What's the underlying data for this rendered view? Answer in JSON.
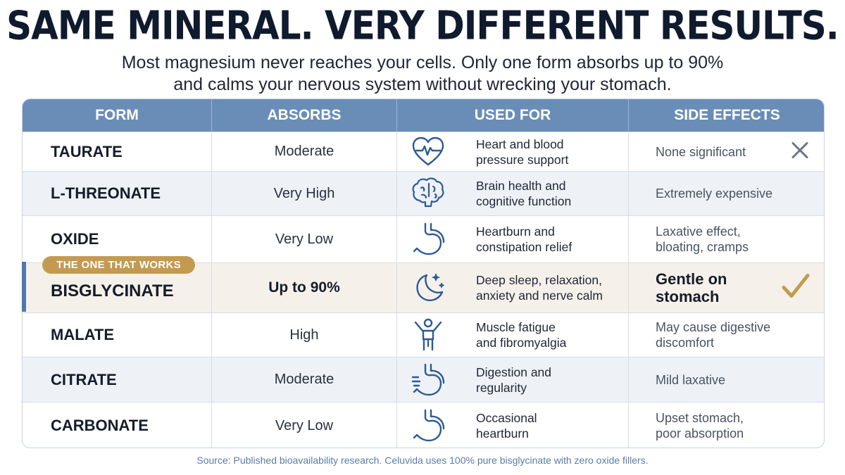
{
  "title": "SAME MINERAL. VERY DIFFERENT RESULTS.",
  "subtitle_line1": "Most magnesium never reaches your cells. Only one form absorbs up to 90%",
  "subtitle_line2": "and calms your nervous system without wrecking your stomach.",
  "columns": [
    "FORM",
    "ABSORBS",
    "USED FOR",
    "SIDE EFFECTS"
  ],
  "badge": "THE ONE THAT WORKS",
  "colors": {
    "header": "#6a8db8",
    "accent": "#4f78ad",
    "badge": "#c39a4f",
    "check": "#c39a4f",
    "icon": "#2d5a94"
  },
  "rows": [
    {
      "form": "TAURATE",
      "absorbs": "Moderate",
      "icon": "heart-pulse-icon",
      "used_1": "Heart and blood",
      "used_2": "pressure support",
      "side_1": "None significant",
      "side_2": "",
      "mark": "x-mark-icon"
    },
    {
      "form": "L-THREONATE",
      "absorbs": "Very High",
      "icon": "brain-icon",
      "used_1": "Brain health and",
      "used_2": "cognitive function",
      "side_1": "Extremely expensive",
      "side_2": ""
    },
    {
      "form": "OXIDE",
      "absorbs": "Very Low",
      "icon": "stomach-icon",
      "used_1": "Heartburn and",
      "used_2": "constipation relief",
      "side_1": "Laxative effect,",
      "side_2": "bloating, cramps"
    },
    {
      "form": "BISGLYCINATE",
      "absorbs": "Up to 90%",
      "icon": "moon-stars-icon",
      "used_1": "Deep sleep, relaxation,",
      "used_2": "anxiety and nerve calm",
      "side_1": "Gentle on",
      "side_2": "stomach",
      "mark": "check-mark-icon"
    },
    {
      "form": "MALATE",
      "absorbs": "High",
      "icon": "person-arms-up-icon",
      "used_1": "Muscle fatigue",
      "used_2": "and fibromyalgia",
      "side_1": "May cause digestive",
      "side_2": "discomfort"
    },
    {
      "form": "CITRATE",
      "absorbs": "Moderate",
      "icon": "digestion-icon",
      "used_1": "Digestion and",
      "used_2": "regularity",
      "side_1": "Mild laxative",
      "side_2": ""
    },
    {
      "form": "CARBONATE",
      "absorbs": "Very Low",
      "icon": "stomach-icon",
      "used_1": "Occasional",
      "used_2": "heartburn",
      "side_1": "Upset stomach,",
      "side_2": "poor absorption"
    }
  ],
  "footer": "Source: Published bioavailability research. Celuvida uses 100% pure bisglycinate with zero oxide fillers."
}
